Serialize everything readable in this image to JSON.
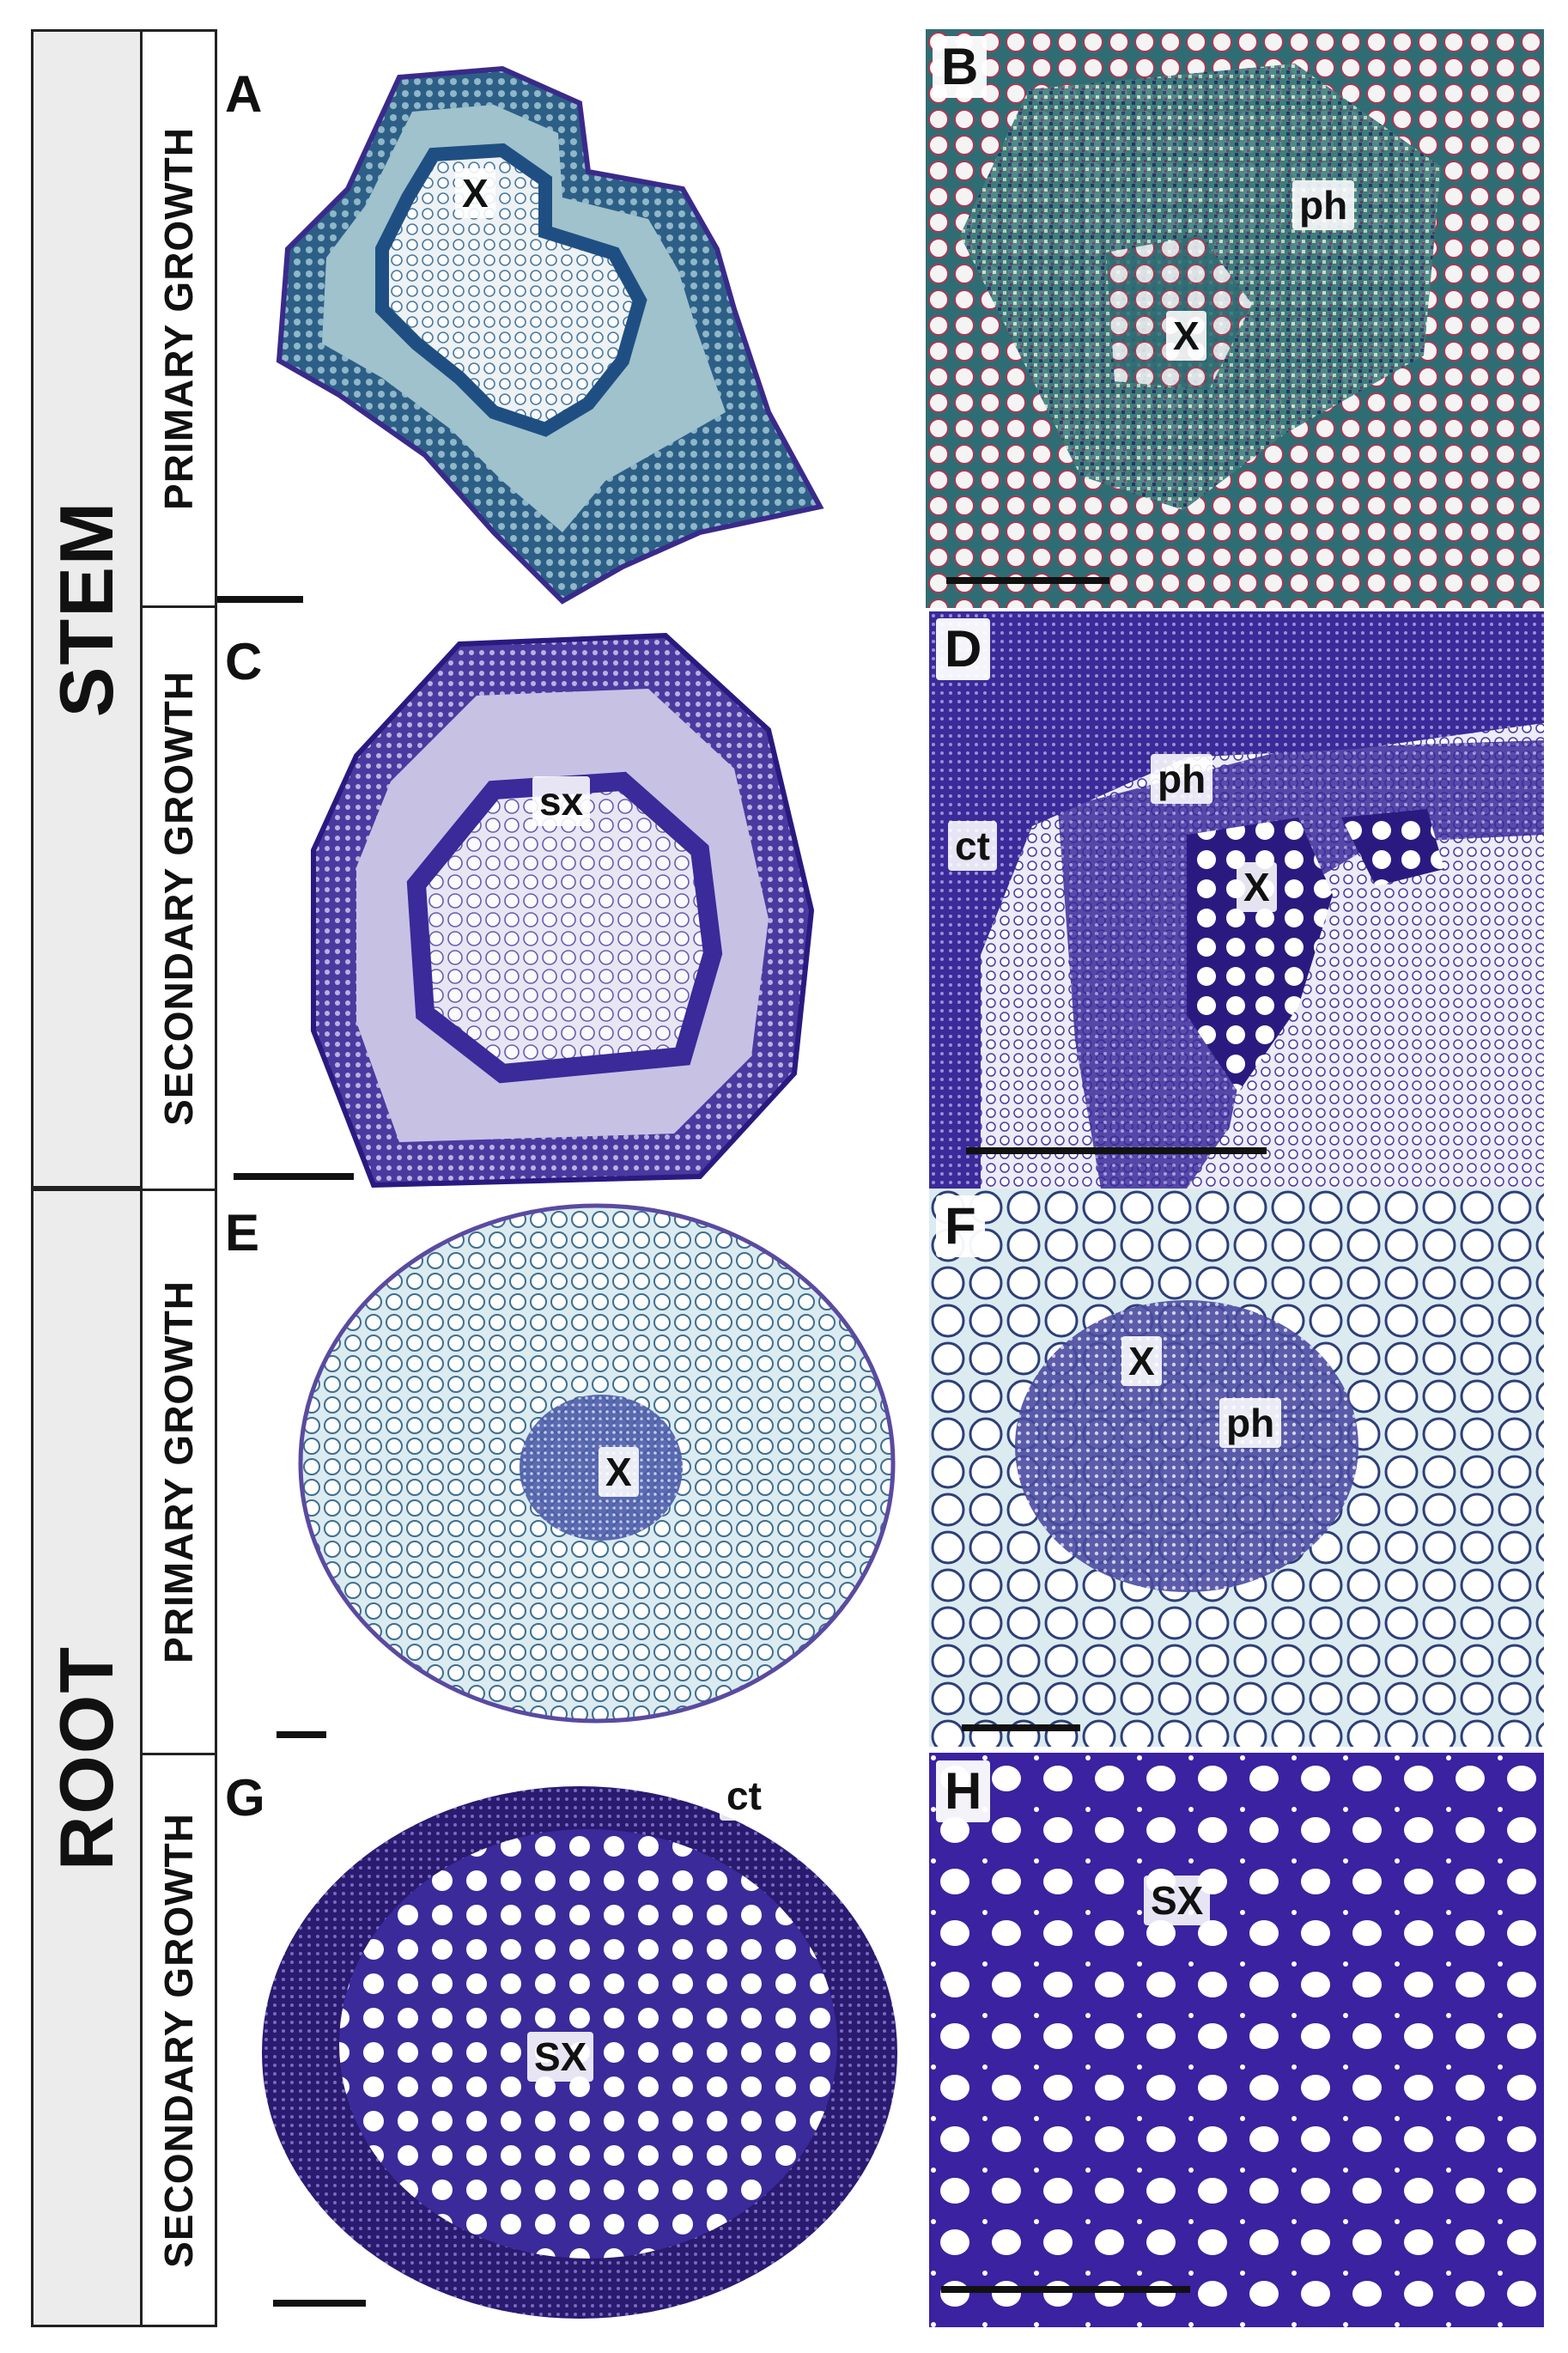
{
  "sections": {
    "stem": "STEM",
    "root": "ROOT"
  },
  "growth": {
    "stem_primary": "PRIMARY GROWTH",
    "stem_secondary": "SECONDARY GROWTH",
    "root_primary": "PRIMARY GROWTH",
    "root_secondary": "SECONDARY GROWTH"
  },
  "panels": {
    "A": {
      "letter": "A",
      "labels": [
        "X"
      ]
    },
    "B": {
      "letter": "B",
      "labels": [
        "ph",
        "X"
      ]
    },
    "C": {
      "letter": "C",
      "labels": [
        "sx"
      ]
    },
    "D": {
      "letter": "D",
      "labels": [
        "ph",
        "ct",
        "X"
      ]
    },
    "E": {
      "letter": "E",
      "labels": [
        "X"
      ]
    },
    "F": {
      "letter": "F",
      "labels": [
        "X",
        "ph"
      ]
    },
    "G": {
      "letter": "G",
      "labels": [
        "ct",
        "SX"
      ]
    },
    "H": {
      "letter": "H",
      "labels": [
        "SX"
      ]
    }
  },
  "colors": {
    "stain_blue": "#3a2a9a",
    "stain_dark": "#2a1a80",
    "stain_teal": "#2f7f7a",
    "band_grey": "#ececec"
  }
}
